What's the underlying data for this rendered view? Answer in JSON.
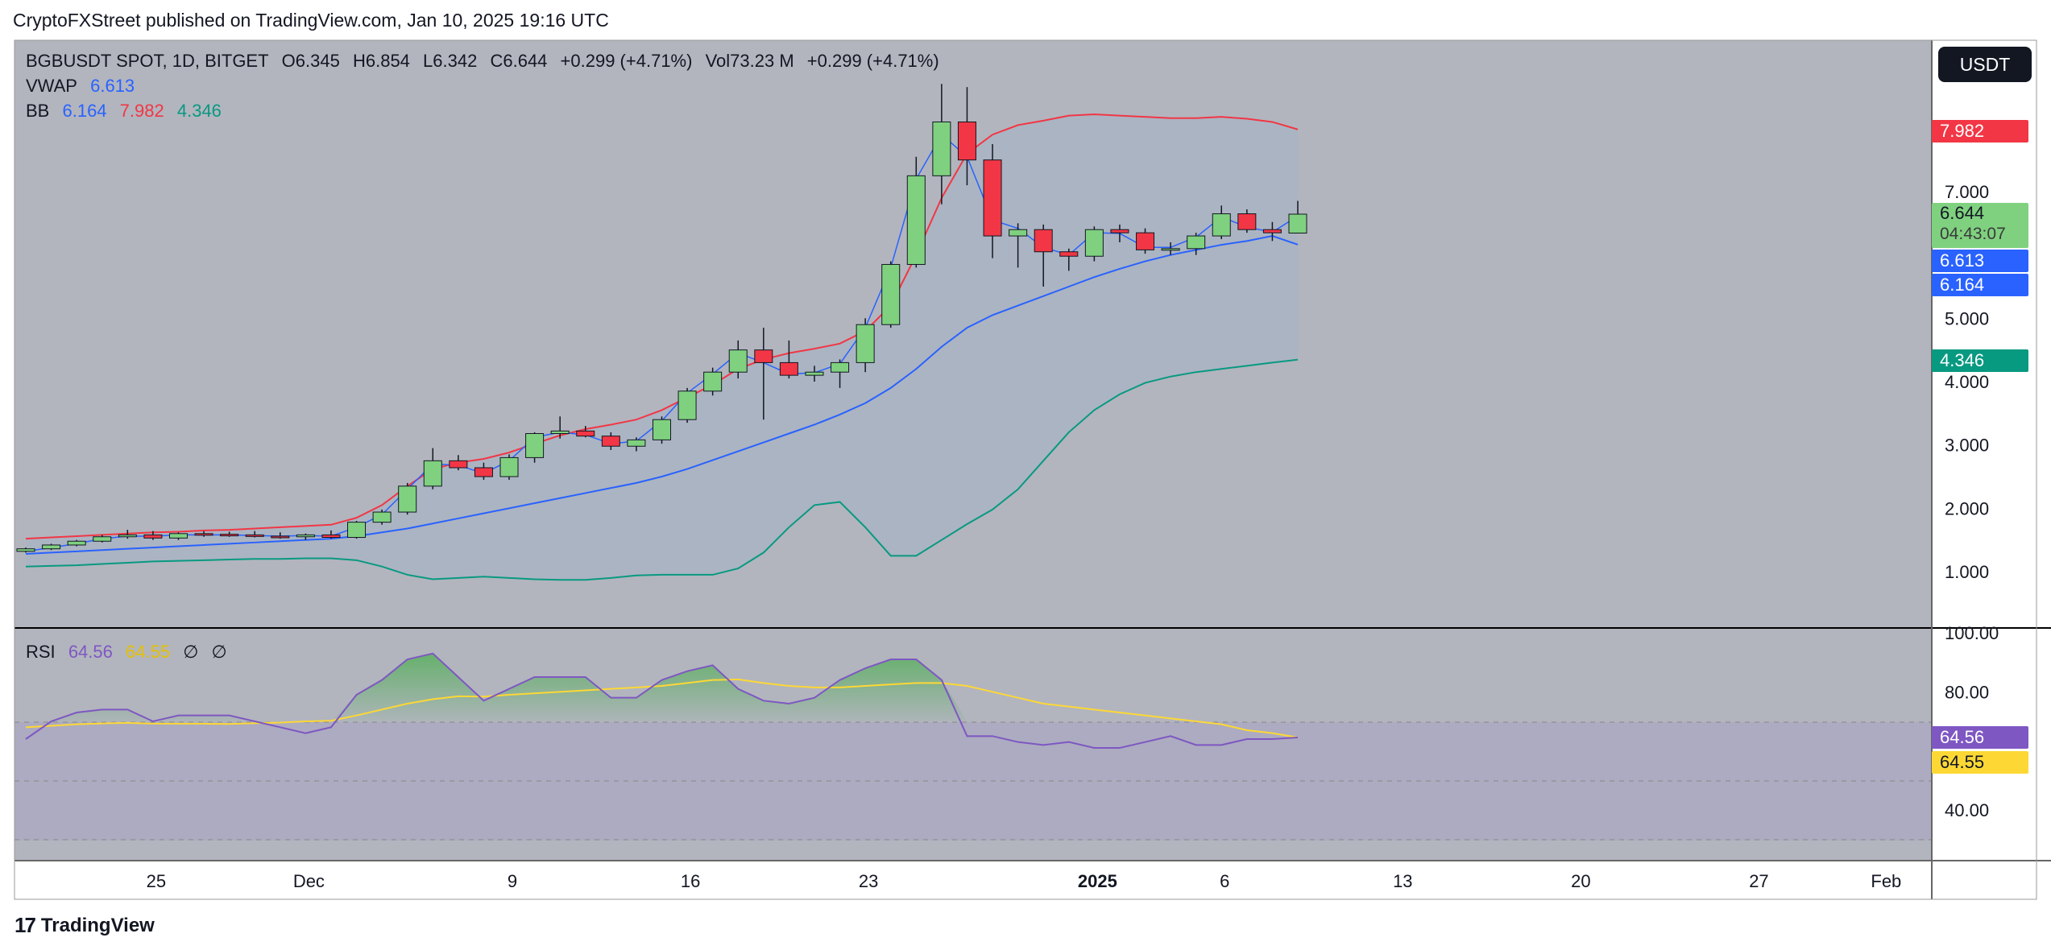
{
  "header": {
    "published_by": "CryptoFXStreet published on TradingView.com, Jan 10, 2025 19:16 UTC"
  },
  "currency_button": "USDT",
  "legend": {
    "symbol": "BGBUSDT SPOT, 1D, BITGET",
    "open": "O6.345",
    "high": "H6.854",
    "low": "L6.342",
    "close": "C6.644",
    "change": "+0.299 (+4.71%)",
    "volume": "Vol73.23 M",
    "volume_change": "+0.299 (+4.71%)",
    "vwap_label": "VWAP",
    "vwap_value": "6.613",
    "bb_label": "BB",
    "bb_basis": "6.164",
    "bb_upper": "7.982",
    "bb_lower": "4.346",
    "rsi_label": "RSI",
    "rsi_value": "64.56",
    "rsi_ma": "64.55",
    "rsi_extra1": "∅",
    "rsi_extra2": "∅"
  },
  "price_tags": {
    "bb_upper": "7.982",
    "last_price": "6.644",
    "countdown": "04:43:07",
    "vwap": "6.613",
    "bb_basis": "6.164",
    "bb_lower": "4.346",
    "rsi": "64.56",
    "rsi_ma": "64.55"
  },
  "colors": {
    "up": "#7fd17f",
    "down": "#f23645",
    "vwap": "#2962ff",
    "bb_upper": "#f23645",
    "bb_lower": "#089981",
    "rsi": "#7e57c2",
    "rsi_ma": "#fdd835",
    "background": "#b2b5be"
  },
  "footer": {
    "brand": "TradingView"
  },
  "chart_data": {
    "type": "candlestick",
    "price_axis": {
      "ticks": [
        "7.000",
        "5.000",
        "4.000",
        "3.000",
        "2.000",
        "1.000"
      ],
      "tick_values": [
        7,
        5,
        4,
        3,
        2,
        1
      ]
    },
    "x_axis": {
      "labels": [
        "25",
        "Dec",
        "9",
        "16",
        "23",
        "2025",
        "6",
        "13",
        "20",
        "27",
        "Feb"
      ],
      "label_index": [
        5,
        11,
        19,
        26,
        33,
        42,
        47,
        54,
        61,
        68,
        73
      ]
    },
    "candles": [
      [
        1.32,
        1.38,
        1.3,
        1.36
      ],
      [
        1.36,
        1.44,
        1.34,
        1.42
      ],
      [
        1.42,
        1.5,
        1.4,
        1.48
      ],
      [
        1.48,
        1.58,
        1.46,
        1.55
      ],
      [
        1.55,
        1.66,
        1.52,
        1.58
      ],
      [
        1.58,
        1.64,
        1.5,
        1.53
      ],
      [
        1.53,
        1.62,
        1.5,
        1.6
      ],
      [
        1.6,
        1.64,
        1.55,
        1.59
      ],
      [
        1.59,
        1.63,
        1.55,
        1.58
      ],
      [
        1.58,
        1.64,
        1.54,
        1.56
      ],
      [
        1.56,
        1.62,
        1.52,
        1.55
      ],
      [
        1.55,
        1.6,
        1.5,
        1.58
      ],
      [
        1.58,
        1.65,
        1.52,
        1.54
      ],
      [
        1.54,
        1.8,
        1.52,
        1.78
      ],
      [
        1.78,
        1.98,
        1.74,
        1.94
      ],
      [
        1.94,
        2.4,
        1.9,
        2.35
      ],
      [
        2.35,
        2.95,
        2.3,
        2.75
      ],
      [
        2.75,
        2.84,
        2.6,
        2.64
      ],
      [
        2.64,
        2.72,
        2.45,
        2.5
      ],
      [
        2.5,
        2.85,
        2.45,
        2.8
      ],
      [
        2.8,
        3.2,
        2.72,
        3.18
      ],
      [
        3.18,
        3.45,
        3.1,
        3.22
      ],
      [
        3.22,
        3.3,
        3.12,
        3.14
      ],
      [
        3.14,
        3.2,
        2.92,
        2.98
      ],
      [
        2.98,
        3.12,
        2.9,
        3.08
      ],
      [
        3.08,
        3.45,
        3.02,
        3.4
      ],
      [
        3.4,
        3.9,
        3.35,
        3.85
      ],
      [
        3.85,
        4.22,
        3.78,
        4.15
      ],
      [
        4.15,
        4.65,
        4.05,
        4.5
      ],
      [
        4.5,
        4.85,
        3.4,
        4.3
      ],
      [
        4.3,
        4.65,
        4.05,
        4.1
      ],
      [
        4.1,
        4.25,
        4.0,
        4.15
      ],
      [
        4.15,
        4.35,
        3.9,
        4.3
      ],
      [
        4.3,
        5.0,
        4.15,
        4.9
      ],
      [
        4.9,
        5.9,
        4.85,
        5.85
      ],
      [
        5.85,
        7.55,
        5.8,
        7.25
      ],
      [
        7.25,
        8.7,
        6.8,
        8.1
      ],
      [
        8.1,
        8.65,
        7.1,
        7.5
      ],
      [
        7.5,
        7.75,
        5.95,
        6.3
      ],
      [
        6.3,
        6.5,
        5.8,
        6.4
      ],
      [
        6.4,
        6.48,
        5.5,
        6.05
      ],
      [
        6.05,
        6.1,
        5.75,
        5.98
      ],
      [
        5.98,
        6.45,
        5.9,
        6.4
      ],
      [
        6.4,
        6.48,
        6.2,
        6.35
      ],
      [
        6.35,
        6.42,
        6.02,
        6.08
      ],
      [
        6.08,
        6.2,
        6.0,
        6.1
      ],
      [
        6.1,
        6.35,
        6.0,
        6.3
      ],
      [
        6.3,
        6.78,
        6.25,
        6.65
      ],
      [
        6.65,
        6.72,
        6.35,
        6.4
      ],
      [
        6.4,
        6.52,
        6.22,
        6.35
      ],
      [
        6.345,
        6.854,
        6.342,
        6.644
      ]
    ],
    "bb_upper": [
      1.52,
      1.54,
      1.56,
      1.58,
      1.6,
      1.62,
      1.63,
      1.65,
      1.66,
      1.68,
      1.7,
      1.72,
      1.74,
      1.85,
      2.05,
      2.35,
      2.62,
      2.72,
      2.78,
      2.88,
      3.02,
      3.15,
      3.25,
      3.32,
      3.4,
      3.55,
      3.75,
      3.95,
      4.2,
      4.35,
      4.45,
      4.52,
      4.6,
      4.8,
      5.2,
      6.0,
      6.9,
      7.6,
      7.9,
      8.05,
      8.12,
      8.2,
      8.22,
      8.2,
      8.18,
      8.16,
      8.16,
      8.18,
      8.15,
      8.1,
      7.982
    ],
    "bb_basis": [
      1.28,
      1.3,
      1.32,
      1.34,
      1.36,
      1.38,
      1.4,
      1.42,
      1.44,
      1.46,
      1.48,
      1.5,
      1.52,
      1.56,
      1.62,
      1.68,
      1.76,
      1.84,
      1.92,
      2.0,
      2.08,
      2.16,
      2.24,
      2.32,
      2.4,
      2.5,
      2.62,
      2.76,
      2.9,
      3.04,
      3.18,
      3.32,
      3.48,
      3.66,
      3.9,
      4.2,
      4.55,
      4.85,
      5.05,
      5.2,
      5.35,
      5.5,
      5.65,
      5.78,
      5.9,
      6.0,
      6.08,
      6.16,
      6.22,
      6.3,
      6.164
    ],
    "bb_lower": [
      1.08,
      1.09,
      1.1,
      1.12,
      1.14,
      1.16,
      1.17,
      1.18,
      1.19,
      1.2,
      1.2,
      1.21,
      1.21,
      1.18,
      1.08,
      0.95,
      0.88,
      0.9,
      0.92,
      0.9,
      0.88,
      0.87,
      0.87,
      0.9,
      0.94,
      0.95,
      0.95,
      0.95,
      1.05,
      1.3,
      1.7,
      2.05,
      2.1,
      1.7,
      1.25,
      1.25,
      1.5,
      1.75,
      1.98,
      2.3,
      2.75,
      3.2,
      3.55,
      3.8,
      3.98,
      4.08,
      4.15,
      4.2,
      4.25,
      4.3,
      4.346
    ],
    "vwap": [
      1.32,
      1.38,
      1.44,
      1.52,
      1.56,
      1.56,
      1.58,
      1.58,
      1.58,
      1.57,
      1.56,
      1.57,
      1.56,
      1.7,
      1.9,
      2.3,
      2.7,
      2.68,
      2.55,
      2.75,
      3.12,
      3.2,
      3.16,
      3.02,
      3.06,
      3.38,
      3.82,
      4.12,
      4.45,
      4.3,
      4.12,
      4.14,
      4.28,
      4.85,
      5.8,
      7.2,
      7.9,
      7.55,
      6.55,
      6.42,
      6.12,
      6.0,
      6.35,
      6.34,
      6.12,
      6.12,
      6.28,
      6.6,
      6.44,
      6.36,
      6.613
    ],
    "rsi": [
      64,
      70,
      73,
      74,
      74,
      70,
      72,
      72,
      72,
      70,
      68,
      66,
      68,
      79,
      84,
      91,
      93,
      85,
      77,
      81,
      85,
      85,
      85,
      78,
      78,
      84,
      87,
      89,
      81,
      77,
      76,
      78,
      84,
      88,
      91,
      91,
      84,
      65,
      65,
      63,
      62,
      63,
      61,
      61,
      63,
      65,
      62,
      62,
      64,
      64,
      64.56
    ],
    "rsi_ma": [
      68,
      68.5,
      69,
      69.3,
      69.5,
      69.2,
      69.2,
      69.2,
      69.1,
      69.4,
      69.6,
      70,
      70.2,
      72,
      74,
      76,
      77.5,
      78.5,
      78.4,
      79,
      79.5,
      80,
      80.5,
      81,
      81.5,
      82,
      83,
      84,
      84.2,
      83,
      82,
      81.5,
      81.5,
      82,
      82.5,
      83,
      83,
      82,
      80,
      78,
      76,
      75,
      74,
      73,
      72,
      71,
      70,
      69,
      67,
      66,
      64.55
    ],
    "rsi_axis": {
      "ticks": [
        "100.00",
        "80.00",
        "40.00"
      ],
      "tick_values": [
        100,
        80,
        40
      ]
    }
  }
}
